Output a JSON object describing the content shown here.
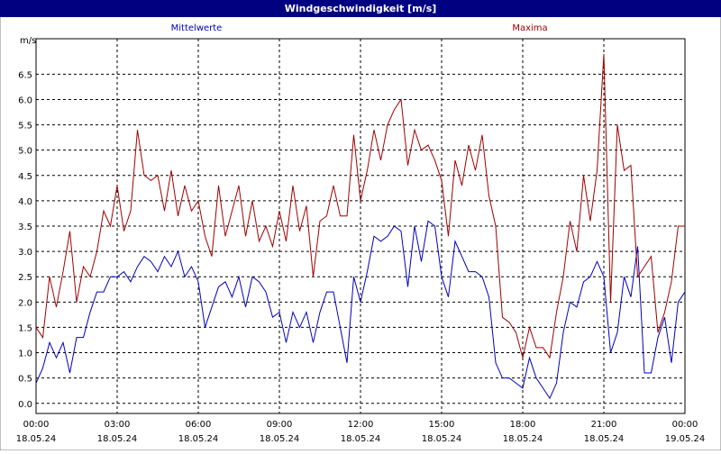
{
  "chart_data": {
    "type": "line",
    "title": "Windgeschwindigkeit [m/s]",
    "y_label": "m/s",
    "x": [
      0,
      0.25,
      0.5,
      0.75,
      1,
      1.25,
      1.5,
      1.75,
      2,
      2.25,
      2.5,
      2.75,
      3,
      3.25,
      3.5,
      3.75,
      4,
      4.25,
      4.5,
      4.75,
      5,
      5.25,
      5.5,
      5.75,
      6,
      6.25,
      6.5,
      6.75,
      7,
      7.25,
      7.5,
      7.75,
      8,
      8.25,
      8.5,
      8.75,
      9,
      9.25,
      9.5,
      9.75,
      10,
      10.25,
      10.5,
      10.75,
      11,
      11.25,
      11.5,
      11.75,
      12,
      12.25,
      12.5,
      12.75,
      13,
      13.25,
      13.5,
      13.75,
      14,
      14.25,
      14.5,
      14.75,
      15,
      15.25,
      15.5,
      15.75,
      16,
      16.25,
      16.5,
      16.75,
      17,
      17.25,
      17.5,
      17.75,
      18,
      18.25,
      18.5,
      18.75,
      19,
      19.25,
      19.5,
      19.75,
      20,
      20.25,
      20.5,
      20.75,
      21,
      21.25,
      21.5,
      21.75,
      22,
      22.25,
      22.5,
      22.75,
      23,
      23.25,
      23.5,
      23.75,
      24
    ],
    "series": [
      {
        "name": "Mittelwerte",
        "color": "#0000c0",
        "values": [
          0.4,
          0.7,
          1.2,
          0.9,
          1.2,
          0.6,
          1.3,
          1.3,
          1.8,
          2.2,
          2.2,
          2.5,
          2.5,
          2.6,
          2.4,
          2.7,
          2.9,
          2.8,
          2.6,
          2.9,
          2.7,
          3.0,
          2.5,
          2.7,
          2.4,
          1.5,
          1.9,
          2.3,
          2.4,
          2.1,
          2.5,
          1.9,
          2.5,
          2.4,
          2.2,
          1.7,
          1.8,
          1.2,
          1.8,
          1.5,
          1.8,
          1.2,
          1.8,
          2.2,
          2.2,
          1.5,
          0.8,
          2.5,
          2.0,
          2.6,
          3.3,
          3.2,
          3.3,
          3.5,
          3.4,
          2.3,
          3.5,
          2.8,
          3.6,
          3.5,
          2.5,
          2.1,
          3.2,
          2.9,
          2.6,
          2.6,
          2.5,
          2.1,
          0.8,
          0.5,
          0.5,
          0.4,
          0.3,
          0.9,
          0.5,
          0.3,
          0.1,
          0.4,
          1.4,
          2.0,
          1.9,
          2.4,
          2.5,
          2.8,
          2.5,
          1.0,
          1.4,
          2.5,
          2.1,
          3.1,
          0.6,
          0.6,
          1.3,
          1.7,
          0.8,
          2.0,
          2.2
        ]
      },
      {
        "name": "Maxima",
        "color": "#a00000",
        "values": [
          1.5,
          1.3,
          2.5,
          1.9,
          2.6,
          3.4,
          2.0,
          2.7,
          2.5,
          3.0,
          3.8,
          3.5,
          4.3,
          3.4,
          3.8,
          5.4,
          4.5,
          4.4,
          4.5,
          3.8,
          4.6,
          3.7,
          4.3,
          3.8,
          4.0,
          3.3,
          2.9,
          4.3,
          3.3,
          3.8,
          4.3,
          3.3,
          4.0,
          3.2,
          3.5,
          3.1,
          3.8,
          3.2,
          4.3,
          3.4,
          3.9,
          2.5,
          3.6,
          3.7,
          4.3,
          3.7,
          3.7,
          5.3,
          4.0,
          4.6,
          5.4,
          4.8,
          5.5,
          5.8,
          6.0,
          4.7,
          5.4,
          5.0,
          5.1,
          4.8,
          4.4,
          3.3,
          4.8,
          4.3,
          5.1,
          4.6,
          5.3,
          4.1,
          3.5,
          1.7,
          1.6,
          1.4,
          0.9,
          1.5,
          1.1,
          1.1,
          0.9,
          1.8,
          2.5,
          3.6,
          3.0,
          4.5,
          3.6,
          4.6,
          6.9,
          2.0,
          5.5,
          4.6,
          4.7,
          2.5,
          2.7,
          2.9,
          1.4,
          1.8,
          2.4,
          3.5,
          3.5
        ]
      }
    ],
    "xlim": [
      0,
      24
    ],
    "xticks": [
      {
        "value": 0,
        "label": "00:00"
      },
      {
        "value": 3,
        "label": "03:00"
      },
      {
        "value": 6,
        "label": "06:00"
      },
      {
        "value": 9,
        "label": "09:00"
      },
      {
        "value": 12,
        "label": "12:00"
      },
      {
        "value": 15,
        "label": "15:00"
      },
      {
        "value": 18,
        "label": "18:00"
      },
      {
        "value": 21,
        "label": "21:00"
      },
      {
        "value": 24,
        "label": "00:00"
      }
    ],
    "xtick_dates": [
      "18.05.24",
      "18.05.24",
      "18.05.24",
      "18.05.24",
      "18.05.24",
      "18.05.24",
      "18.05.24",
      "18.05.24",
      "19.05.24"
    ],
    "ylim": [
      -0.2,
      7.2
    ],
    "yticks": [
      {
        "value": 0,
        "label": "0.0"
      },
      {
        "value": 0.5,
        "label": "0.5"
      },
      {
        "value": 1,
        "label": "1.0"
      },
      {
        "value": 1.5,
        "label": "1.5"
      },
      {
        "value": 2,
        "label": "2.0"
      },
      {
        "value": 2.5,
        "label": "2.5"
      },
      {
        "value": 3,
        "label": "3.0"
      },
      {
        "value": 3.5,
        "label": "3.5"
      },
      {
        "value": 4,
        "label": "4.0"
      },
      {
        "value": 4.5,
        "label": "4.5"
      },
      {
        "value": 5,
        "label": "5.0"
      },
      {
        "value": 5.5,
        "label": "5.5"
      },
      {
        "value": 6,
        "label": "6.0"
      },
      {
        "value": 6.5,
        "label": "6.5"
      }
    ],
    "grid": true
  }
}
